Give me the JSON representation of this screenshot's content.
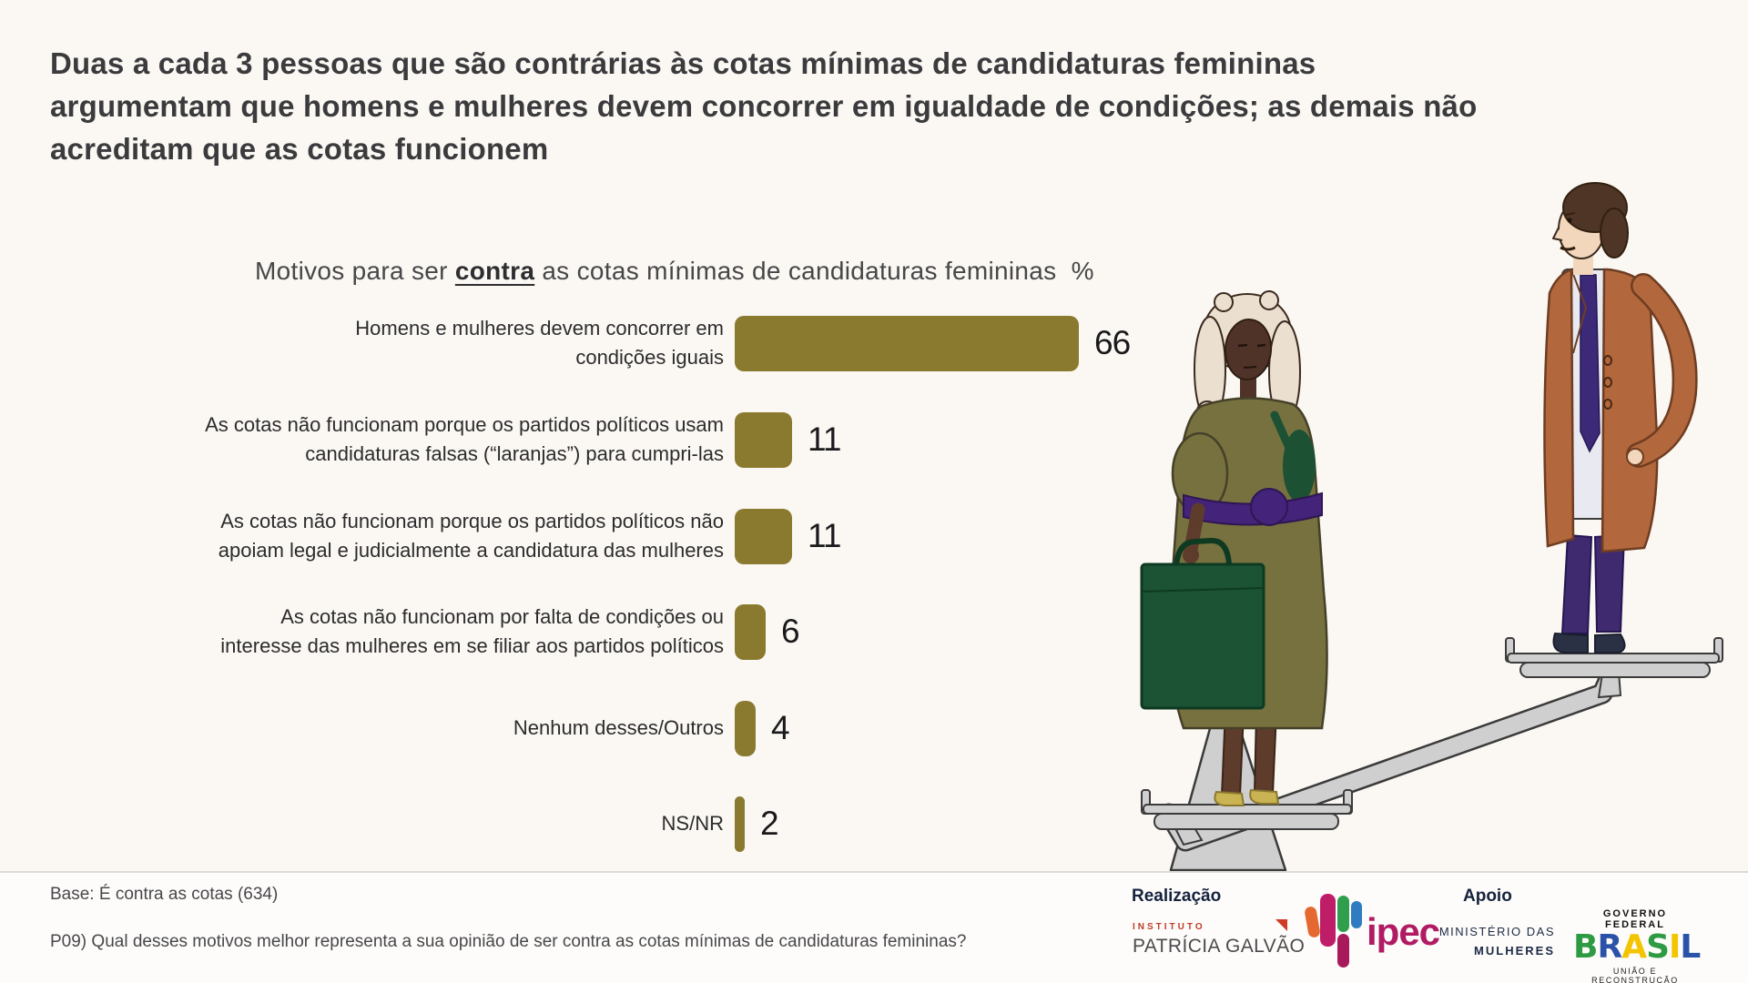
{
  "page": {
    "background": "#FBF8F3",
    "title": "Duas a cada 3 pessoas que são contrárias às cotas mínimas de candidaturas femininas\nargumentam que homens e mulheres devem concorrer em igualdade de condições; as demais não\nacreditam que as cotas funcionem"
  },
  "chart_data": {
    "type": "bar",
    "orientation": "horizontal",
    "title_prefix": "Motivos para ser ",
    "title_emphasis": "contra",
    "title_suffix": " as cotas mínimas de candidaturas femininas  %",
    "unit": "%",
    "bar_color": "#8A7A2F",
    "xlim": [
      0,
      70
    ],
    "grid": false,
    "legend": "none",
    "categories": [
      "Homens e mulheres devem concorrer em\ncondições iguais",
      "As cotas não funcionam porque os partidos políticos usam\ncandidaturas falsas (“laranjas”) para cumpri-las",
      "As cotas não funcionam porque os partidos políticos não\napoiam legal e judicialmente a candidatura das mulheres",
      "As cotas não funcionam por falta de condições ou\ninteresse das mulheres em se filiar aos partidos políticos",
      "Nenhum desses/Outros",
      "NS/NR"
    ],
    "values": [
      66,
      11,
      11,
      6,
      4,
      2
    ]
  },
  "illustration": {
    "description": "Woman with briefcase standing on the lower plate and man standing on the higher plate of an unbalanced seesaw scale",
    "woman_dress_color": "#76713F",
    "man_jacket_color": "#B2673C",
    "scale_color": "#CFCFCF"
  },
  "footer": {
    "base_note": "Base: É contra as cotas (634)",
    "question": "P09) Qual desses motivos melhor representa a sua opinião de ser contra as cotas mínimas de candidaturas femininas?",
    "realizacao_label": "Realização",
    "apoio_label": "Apoio",
    "logos": {
      "instituto": "INSTITUTO",
      "patricia_galvao": "PATRÍCIA GALVÃO",
      "ipec": "ipec",
      "ministerio_line1": "MINISTÉRIO DAS",
      "ministerio_line2": "MULHERES",
      "governo": "GOVERNO FEDERAL",
      "brasil": "BRASIL",
      "brasil_letter_colors": [
        "#2e9b44",
        "#2b52a8",
        "#f3c400",
        "#2e9b44",
        "#f3c400",
        "#2b52a8"
      ],
      "uniao": "UNIÃO E RECONSTRUÇÃO"
    }
  }
}
